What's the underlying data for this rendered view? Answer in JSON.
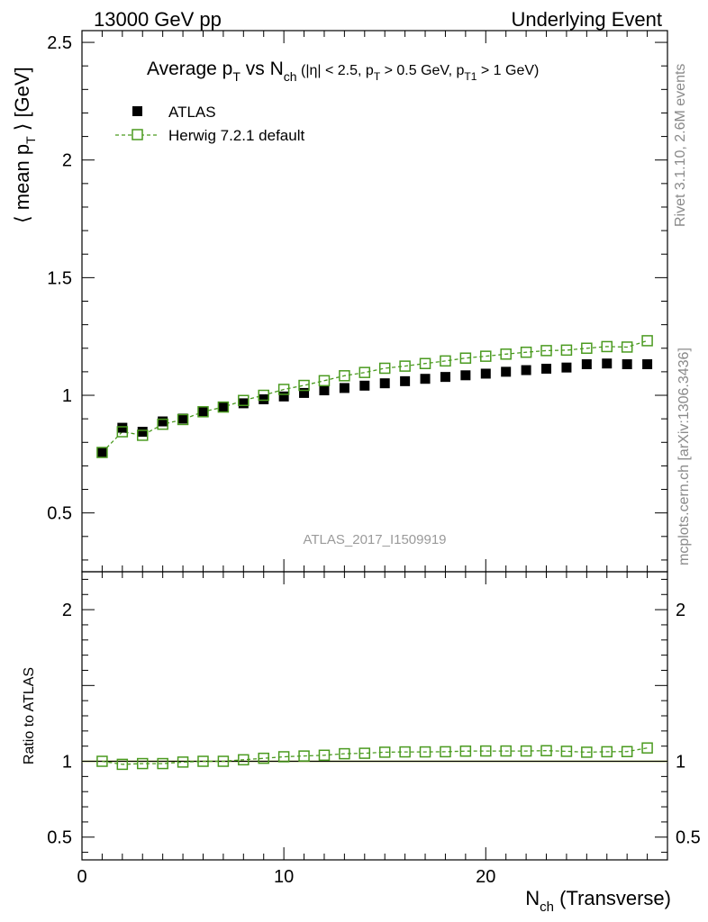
{
  "header": {
    "left": "13000 GeV pp",
    "right": "Underlying Event"
  },
  "side_text": {
    "rivet": "Rivet 3.1.10,  2.6M events",
    "mcplots": "mcplots.cern.ch [arXiv:1306.3436]"
  },
  "watermark": "ATLAS_2017_I1509919",
  "colors": {
    "data": "#000000",
    "mc": "#4a9a1f",
    "band": "#d8f060"
  },
  "chart_data": [
    {
      "type": "scatter",
      "panel": "main",
      "title": {
        "main": "Average p",
        "main_sub": "T",
        "vs": " vs N",
        "vs_sub": "ch",
        "cuts_a": " (|η| < 2.5, p",
        "cuts_sub1": "T",
        "cuts_b": " > 0.5 GeV, p",
        "cuts_sub2": "T1",
        "cuts_c": " > 1 GeV)"
      },
      "ylabel": {
        "pre": "⟨ mean p",
        "sub": "T",
        "post": " ⟩ [GeV]"
      },
      "xlim": [
        0,
        29
      ],
      "ylim": [
        0.25,
        2.55
      ],
      "yticks": [
        {
          "value": 0.5,
          "label": "0.5"
        },
        {
          "value": 1,
          "label": "1"
        },
        {
          "value": 1.5,
          "label": "1.5"
        },
        {
          "value": 2,
          "label": "2"
        },
        {
          "value": 2.5,
          "label": "2.5"
        }
      ],
      "x": [
        1,
        2,
        3,
        4,
        5,
        6,
        7,
        8,
        9,
        10,
        11,
        12,
        13,
        14,
        15,
        16,
        17,
        18,
        19,
        20,
        21,
        22,
        23,
        24,
        25,
        26,
        27,
        28
      ],
      "series": [
        {
          "name": "ATLAS",
          "marker": "filled-square",
          "values": [
            0.757,
            0.862,
            0.845,
            0.889,
            0.901,
            0.93,
            0.95,
            0.966,
            0.983,
            0.995,
            1.01,
            1.021,
            1.031,
            1.041,
            1.051,
            1.06,
            1.07,
            1.078,
            1.085,
            1.092,
            1.1,
            1.107,
            1.113,
            1.118,
            1.132,
            1.135,
            1.132,
            1.132
          ]
        },
        {
          "name": "Herwig 7.2.1 default",
          "marker": "open-square-dashed",
          "values": [
            0.757,
            0.845,
            0.83,
            0.877,
            0.897,
            0.93,
            0.95,
            0.978,
            1.0,
            1.025,
            1.042,
            1.062,
            1.083,
            1.097,
            1.115,
            1.124,
            1.135,
            1.146,
            1.158,
            1.166,
            1.175,
            1.183,
            1.19,
            1.192,
            1.2,
            1.207,
            1.205,
            1.232
          ]
        }
      ]
    },
    {
      "type": "scatter",
      "panel": "ratio",
      "ylabel": "Ratio to ATLAS",
      "xlabel": {
        "pre": "N",
        "sub": "ch",
        "post": " (Transverse)"
      },
      "xlim": [
        0,
        29
      ],
      "ylim": [
        0.35,
        2.25
      ],
      "xticks": [
        {
          "value": 0,
          "label": "0"
        },
        {
          "value": 10,
          "label": "10"
        },
        {
          "value": 20,
          "label": "20"
        }
      ],
      "yticks": [
        {
          "value": 0.5,
          "label": "0.5"
        },
        {
          "value": 1,
          "label": "1"
        },
        {
          "value": 2,
          "label": "2"
        }
      ],
      "x": [
        1,
        2,
        3,
        4,
        5,
        6,
        7,
        8,
        9,
        10,
        11,
        12,
        13,
        14,
        15,
        16,
        17,
        18,
        19,
        20,
        21,
        22,
        23,
        24,
        25,
        26,
        27,
        28
      ],
      "series": [
        {
          "name": "Herwig 7.2.1 default",
          "values": [
            1.0,
            0.98,
            0.985,
            0.985,
            0.995,
            1.0,
            1.0,
            1.01,
            1.02,
            1.03,
            1.035,
            1.04,
            1.05,
            1.053,
            1.06,
            1.062,
            1.062,
            1.063,
            1.067,
            1.068,
            1.068,
            1.068,
            1.07,
            1.066,
            1.06,
            1.063,
            1.064,
            1.088
          ]
        }
      ]
    }
  ]
}
